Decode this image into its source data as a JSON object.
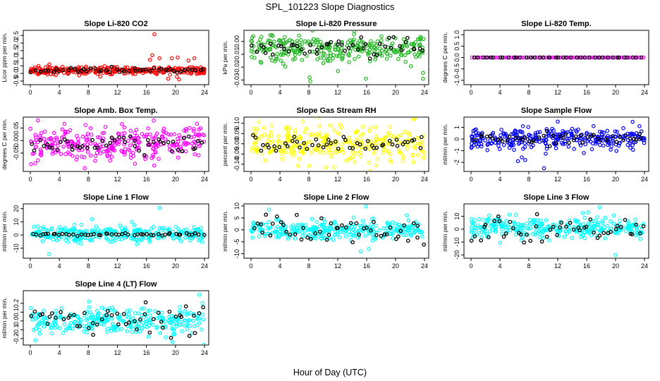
{
  "figure": {
    "title": "SPL_101223  Slope Diagnostics",
    "xlabel": "Hour of Day (UTC)"
  },
  "colors": {
    "black": "#000000",
    "red": "#ff0000",
    "green": "#22b722",
    "magenta": "#ff00ff",
    "yellow": "#ffff00",
    "blue": "#0000ff",
    "cyan": "#00ffff"
  },
  "chart_data": [
    {
      "type": "scatter",
      "title": "Slope Li-820 CO2",
      "ylabel": "Licor ppm per min.",
      "series_color": "red",
      "x_ticks": [
        0,
        4,
        8,
        12,
        16,
        20,
        24
      ],
      "xlim": [
        0,
        24
      ],
      "y_ticks": [
        -0.5,
        0,
        0.5,
        1.0,
        1.5,
        2.0,
        2.5
      ],
      "y_tick_labels": [
        "-0.5",
        "0.0",
        "0.5",
        "1.0",
        "1.5",
        "2.0",
        "2.5"
      ],
      "ylim": [
        -0.6,
        2.7
      ],
      "center": 0.2,
      "spread": 0.12,
      "black_spread": 0.08,
      "outliers": [
        [
          17.1,
          2.58
        ],
        [
          16.8,
          1.2
        ],
        [
          16.5,
          0.9
        ],
        [
          17.8,
          1.0
        ],
        [
          19.5,
          1.0
        ],
        [
          20.3,
          1.05
        ],
        [
          19.0,
          -0.35
        ],
        [
          20.5,
          -0.4
        ],
        [
          21.8,
          0.85
        ],
        [
          22.6,
          1.0
        ],
        [
          23.5,
          0.4
        ]
      ],
      "n_points": 300,
      "n_black": 50
    },
    {
      "type": "scatter",
      "title": "Slope Li-820 Pressure",
      "ylabel": "kPa per min.",
      "series_color": "green",
      "x_ticks": [
        0,
        4,
        8,
        12,
        16,
        20,
        24
      ],
      "xlim": [
        0,
        24
      ],
      "y_ticks": [
        -0.03,
        -0.02,
        -0.01,
        0.0
      ],
      "y_tick_labels": [
        "-0.03",
        "-0.02",
        "-0.01",
        "0.00"
      ],
      "ylim": [
        -0.032,
        0.007
      ],
      "center": -0.005,
      "spread": 0.0055,
      "black_spread": 0.004,
      "outliers": [
        [
          8.1,
          -0.028
        ],
        [
          8.2,
          -0.031
        ],
        [
          15.9,
          -0.029
        ],
        [
          23.8,
          -0.029
        ]
      ],
      "n_points": 300,
      "n_black": 50
    },
    {
      "type": "scatter",
      "title": "Slope Li-820 Temp.",
      "ylabel": "degrees C per min.",
      "series_color": "magenta",
      "x_ticks": [
        0,
        4,
        8,
        12,
        16,
        20,
        24
      ],
      "xlim": [
        0,
        24
      ],
      "y_ticks": [
        -1.0,
        -0.5,
        0.0,
        0.5,
        1.0
      ],
      "y_tick_labels": [
        "-1.0",
        "-0.5",
        "0.0",
        "0.5",
        "1.0"
      ],
      "ylim": [
        -1.1,
        1.1
      ],
      "center": 0.0,
      "spread": 0.0,
      "black_spread": 0.0,
      "outliers": [],
      "n_points": 80,
      "n_black": 40
    },
    {
      "type": "scatter",
      "title": "Slope Amb. Box Temp.",
      "ylabel": "degrees C per min.",
      "series_color": "magenta",
      "x_ticks": [
        0,
        4,
        8,
        12,
        16,
        20,
        24
      ],
      "xlim": [
        0,
        24
      ],
      "y_ticks": [
        -0.05,
        0.0,
        0.05
      ],
      "y_tick_labels": [
        "-0.05",
        "0.00",
        "0.05"
      ],
      "ylim": [
        -0.115,
        0.085
      ],
      "center": -0.01,
      "spread": 0.035,
      "black_spread": 0.02,
      "outliers": [
        [
          7.5,
          -0.11
        ],
        [
          11.0,
          -0.08
        ],
        [
          17.0,
          0.08
        ]
      ],
      "n_points": 300,
      "n_black": 50
    },
    {
      "type": "scatter",
      "title": "Slope Gas Stream RH",
      "ylabel": "percent per min.",
      "series_color": "yellow",
      "x_ticks": [
        0,
        4,
        8,
        12,
        16,
        20,
        24
      ],
      "xlim": [
        0,
        24
      ],
      "y_ticks": [
        -0.1,
        -0.05,
        0.0,
        0.05,
        0.1
      ],
      "y_tick_labels": [
        "-0.10",
        "-0.05",
        "0.00",
        "0.05",
        "0.10"
      ],
      "ylim": [
        -0.125,
        0.12
      ],
      "center": 0.0,
      "spread": 0.04,
      "black_spread": 0.025,
      "outliers": [
        [
          11.5,
          -0.115
        ],
        [
          22.5,
          0.12
        ]
      ],
      "n_points": 300,
      "n_black": 50
    },
    {
      "type": "scatter",
      "title": "Slope Sample Flow",
      "ylabel": "ml/min per min.",
      "series_color": "blue",
      "x_ticks": [
        0,
        4,
        8,
        12,
        16,
        20,
        24
      ],
      "xlim": [
        0,
        24
      ],
      "y_ticks": [
        -2,
        -1,
        0,
        1
      ],
      "y_tick_labels": [
        "-2",
        "-1",
        "0",
        "1"
      ],
      "ylim": [
        -2.6,
        1.7
      ],
      "center": 0.05,
      "spread": 0.45,
      "black_spread": 0.25,
      "outliers": [
        [
          10.1,
          -2.5
        ],
        [
          6.5,
          -1.9
        ],
        [
          7.5,
          -1.8
        ],
        [
          12.0,
          1.5
        ]
      ],
      "n_points": 300,
      "n_black": 50
    },
    {
      "type": "scatter",
      "title": "Slope Line 1 Flow",
      "ylabel": "ml/min per min.",
      "series_color": "cyan",
      "x_ticks": [
        0,
        4,
        8,
        12,
        16,
        20,
        24
      ],
      "xlim": [
        0,
        24
      ],
      "y_ticks": [
        -10,
        0,
        10,
        20
      ],
      "y_tick_labels": [
        "-10",
        "0",
        "10",
        "20"
      ],
      "ylim": [
        -16,
        22
      ],
      "center": 0.5,
      "spread": 3.0,
      "black_spread": 0.5,
      "outliers": [
        [
          2.6,
          -14.5
        ],
        [
          17.8,
          20.5
        ],
        [
          8.5,
          12
        ],
        [
          14,
          10
        ]
      ],
      "n_points": 300,
      "n_black": 50
    },
    {
      "type": "scatter",
      "title": "Slope Line 2 Flow",
      "ylabel": "ml/min per min.",
      "series_color": "cyan",
      "x_ticks": [
        0,
        4,
        8,
        12,
        16,
        20,
        24
      ],
      "xlim": [
        0,
        24
      ],
      "y_ticks": [
        -10,
        -5,
        0,
        5,
        10
      ],
      "y_tick_labels": [
        "-10",
        "-5",
        "0",
        "5",
        "10"
      ],
      "ylim": [
        -11,
        10
      ],
      "center": 0.0,
      "spread": 2.0,
      "black_spread": 3.0,
      "outliers": [
        [
          15.9,
          9.8
        ],
        [
          2.5,
          8.5
        ],
        [
          16.3,
          -8
        ],
        [
          15.2,
          -9
        ]
      ],
      "n_points": 300,
      "n_black": 50
    },
    {
      "type": "scatter",
      "title": "Slope Line 3 Flow",
      "ylabel": "ml/min per min.",
      "series_color": "cyan",
      "x_ticks": [
        0,
        4,
        8,
        12,
        16,
        20,
        24
      ],
      "xlim": [
        0,
        24
      ],
      "y_ticks": [
        -20,
        -10,
        0,
        10
      ],
      "y_tick_labels": [
        "-20",
        "-10",
        "0",
        "10"
      ],
      "ylim": [
        -21,
        18
      ],
      "center": 1.0,
      "spread": 4.0,
      "black_spread": 5.0,
      "outliers": [
        [
          20.0,
          -20
        ],
        [
          17.8,
          17
        ],
        [
          16.2,
          13
        ]
      ],
      "n_points": 300,
      "n_black": 50
    },
    {
      "type": "scatter",
      "title": "Slope Line 4 (LT) Flow",
      "ylabel": "ml/min per min.",
      "series_color": "cyan",
      "x_ticks": [
        0,
        4,
        8,
        12,
        16,
        20,
        24
      ],
      "xlim": [
        0,
        24
      ],
      "y_ticks": [
        -0.2,
        -0.1,
        0.0,
        0.1,
        0.2
      ],
      "y_tick_labels": [
        "-0.2",
        "-0.1",
        "0.0",
        "0.1",
        "0.2"
      ],
      "ylim": [
        -0.25,
        0.32
      ],
      "center": 0.0,
      "spread": 0.075,
      "black_spread": 0.08,
      "outliers": [
        [
          23.3,
          0.3
        ],
        [
          19.6,
          -0.24
        ],
        [
          0.7,
          -0.22
        ]
      ],
      "n_points": 300,
      "n_black": 50
    }
  ]
}
